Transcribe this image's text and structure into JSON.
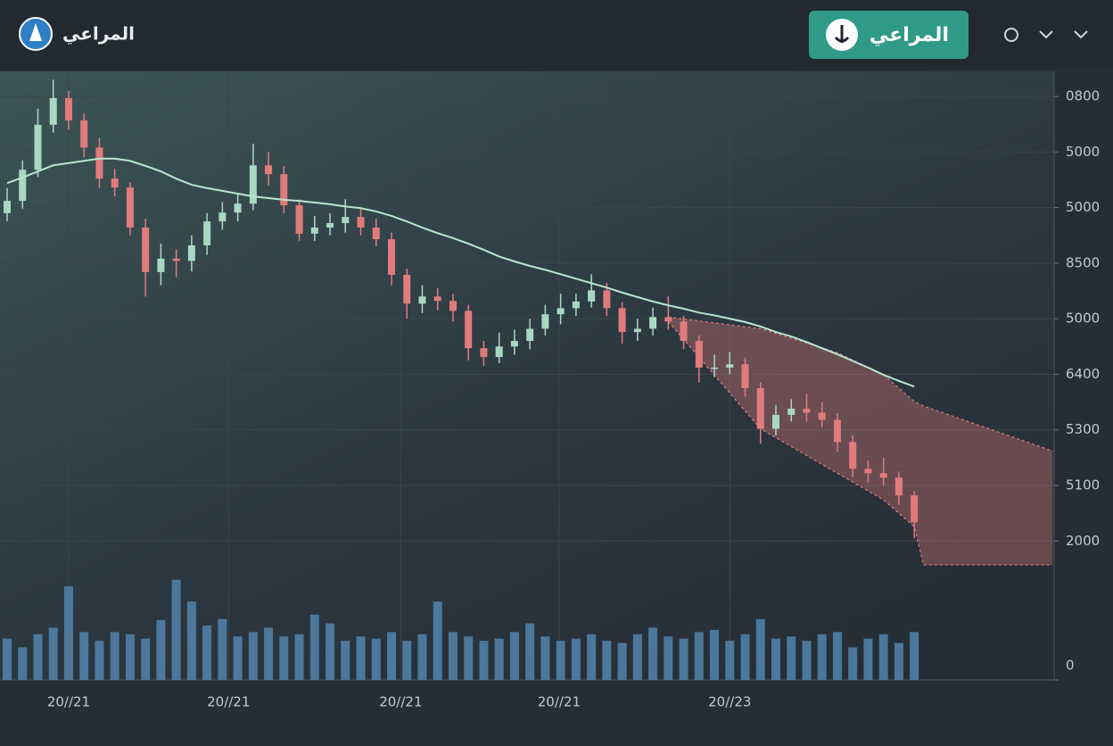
{
  "header": {
    "brand": "المراعي",
    "button": "المراعي"
  },
  "chart_data": {
    "type": "candlestick",
    "open": [
      6.9,
      7.12,
      7.68,
      8.49,
      8.97,
      8.57,
      8.08,
      7.52,
      7.36,
      6.64,
      5.84,
      6.08,
      6.04,
      6.32,
      6.75,
      6.91,
      7.07,
      7.76,
      7.6,
      7.04,
      6.53,
      6.64,
      6.72,
      6.83,
      6.64,
      6.43,
      5.79,
      5.27,
      5.4,
      5.32,
      5.14,
      4.47,
      4.31,
      4.5,
      4.6,
      4.82,
      5.08,
      5.19,
      5.31,
      5.51,
      5.19,
      4.76,
      4.82,
      5.03,
      4.95,
      4.6,
      4.12,
      4.12,
      4.18,
      3.75,
      3.02,
      3.27,
      3.38,
      3.31,
      3.18,
      2.78,
      2.3,
      2.22,
      2.14,
      1.82
    ],
    "high": [
      7.35,
      7.85,
      8.78,
      9.3,
      9.1,
      8.7,
      8.25,
      7.7,
      7.45,
      6.8,
      6.35,
      6.25,
      6.5,
      6.9,
      7.1,
      7.25,
      8.15,
      8.0,
      7.75,
      7.15,
      6.85,
      6.9,
      7.15,
      7.0,
      6.8,
      6.55,
      5.9,
      5.6,
      5.55,
      5.45,
      5.25,
      4.6,
      4.75,
      4.8,
      5.0,
      5.25,
      5.45,
      5.45,
      5.8,
      5.65,
      5.3,
      5.0,
      5.2,
      5.4,
      5.05,
      4.7,
      4.35,
      4.4,
      4.3,
      3.85,
      3.45,
      3.55,
      3.65,
      3.5,
      3.3,
      2.9,
      2.45,
      2.5,
      2.25,
      1.9
    ],
    "low": [
      6.75,
      6.98,
      7.55,
      8.35,
      8.4,
      7.9,
      7.35,
      7.2,
      6.5,
      5.4,
      5.6,
      5.75,
      5.85,
      6.15,
      6.6,
      6.75,
      6.95,
      7.4,
      6.9,
      6.4,
      6.4,
      6.5,
      6.55,
      6.5,
      6.3,
      5.6,
      5.0,
      5.1,
      5.15,
      4.95,
      4.25,
      4.15,
      4.2,
      4.35,
      4.45,
      4.7,
      4.9,
      5.05,
      5.2,
      5.05,
      4.55,
      4.6,
      4.7,
      4.8,
      4.45,
      3.85,
      3.95,
      4.0,
      3.6,
      2.75,
      2.9,
      3.15,
      3.15,
      3.05,
      2.6,
      2.15,
      2.05,
      2.0,
      1.65,
      1.05
    ],
    "close": [
      7.12,
      7.68,
      8.49,
      8.97,
      8.57,
      8.08,
      7.52,
      7.36,
      6.64,
      5.84,
      6.08,
      6.04,
      6.32,
      6.75,
      6.91,
      7.07,
      7.76,
      7.6,
      7.04,
      6.53,
      6.64,
      6.72,
      6.83,
      6.64,
      6.43,
      5.79,
      5.27,
      5.4,
      5.32,
      5.14,
      4.47,
      4.31,
      4.5,
      4.6,
      4.82,
      5.08,
      5.19,
      5.31,
      5.51,
      5.19,
      4.76,
      4.82,
      5.03,
      4.95,
      4.6,
      4.12,
      4.12,
      4.18,
      3.75,
      3.02,
      3.27,
      3.38,
      3.31,
      3.18,
      2.78,
      2.3,
      2.22,
      2.14,
      1.82,
      1.34
    ],
    "up_color": "#a9d8c2",
    "down_color": "#e27b7b",
    "ma": {
      "color": "#b9e6cf",
      "values": [
        7.44,
        7.54,
        7.65,
        7.76,
        7.8,
        7.84,
        7.88,
        7.88,
        7.84,
        7.75,
        7.65,
        7.52,
        7.41,
        7.35,
        7.3,
        7.25,
        7.2,
        7.17,
        7.14,
        7.12,
        7.09,
        7.06,
        7.02,
        6.99,
        6.93,
        6.85,
        6.75,
        6.64,
        6.54,
        6.45,
        6.35,
        6.24,
        6.12,
        6.03,
        5.95,
        5.88,
        5.8,
        5.72,
        5.64,
        5.56,
        5.47,
        5.39,
        5.31,
        5.24,
        5.18,
        5.11,
        5.06,
        5.0,
        4.94,
        4.86,
        4.76,
        4.68,
        4.58,
        4.47,
        4.36,
        4.24,
        4.12,
        3.99,
        3.88,
        3.78
      ]
    },
    "volume": {
      "color": "#4f80a6",
      "axis": "y2",
      "values": [
        38,
        30,
        42,
        48,
        86,
        44,
        36,
        44,
        42,
        38,
        55,
        92,
        72,
        50,
        56,
        40,
        44,
        48,
        40,
        42,
        60,
        52,
        36,
        40,
        38,
        44,
        36,
        42,
        72,
        44,
        40,
        36,
        38,
        44,
        52,
        40,
        36,
        38,
        42,
        36,
        34,
        42,
        48,
        40,
        38,
        44,
        46,
        36,
        42,
        56,
        38,
        40,
        36,
        42,
        44,
        30,
        38,
        42,
        34,
        44
      ]
    },
    "forecast": {
      "color": "#e27b7b",
      "x": [
        43,
        49,
        54,
        57,
        59,
        59.6,
        68
      ],
      "upper": [
        5.03,
        4.82,
        4.39,
        3.99,
        3.51,
        3.43,
        2.62
      ],
      "lower": [
        4.95,
        3.02,
        2.22,
        1.74,
        1.26,
        0.57,
        0.57
      ]
    },
    "ylim": [
      -1.5,
      9.45
    ],
    "yticks": [
      {
        "value": 9,
        "label": "0800"
      },
      {
        "value": 8,
        "label": "5000"
      },
      {
        "value": 7,
        "label": "5000"
      },
      {
        "value": 6,
        "label": "8500"
      },
      {
        "value": 5,
        "label": "5000"
      },
      {
        "value": 4,
        "label": "6400"
      },
      {
        "value": 3,
        "label": "5300"
      },
      {
        "value": 2,
        "label": "5100"
      },
      {
        "value": 1,
        "label": "2000"
      }
    ],
    "y2lim": [
      0,
      100
    ],
    "y2ticks": [
      0
    ],
    "xticks": [
      {
        "value": 4,
        "label": "20//21"
      },
      {
        "value": 14.4,
        "label": "20//21"
      },
      {
        "value": 25.6,
        "label": "20//21"
      },
      {
        "value": 35.9,
        "label": "20//21"
      },
      {
        "value": 47,
        "label": "20//23"
      }
    ],
    "grid": true
  }
}
